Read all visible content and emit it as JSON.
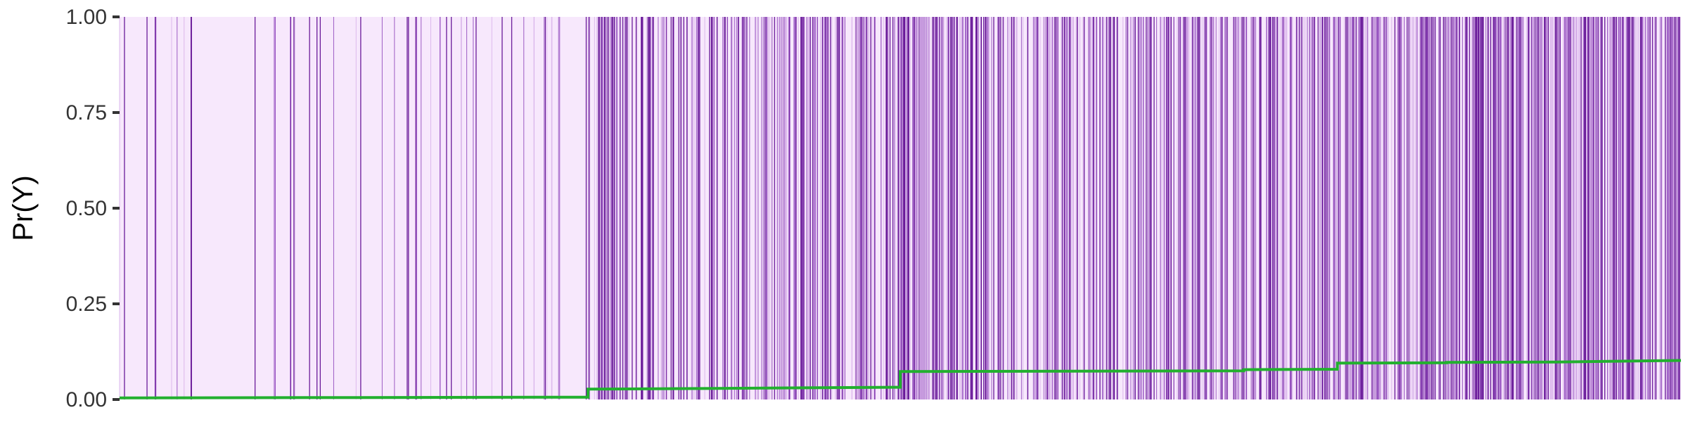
{
  "colors": {
    "panel_background": "#f7e8fc",
    "event_line_dark": "#6a1b9a",
    "event_line_mid": "#9c5bc4",
    "event_line_light": "#dcb8ec",
    "probability_line": "#22b02e",
    "tick_color": "#333333"
  },
  "chart_data": {
    "type": "line",
    "title": "",
    "xlabel": "",
    "ylabel": "Pr(Y)",
    "ylim": [
      0,
      1
    ],
    "xlim": [
      0,
      1
    ],
    "yticks": [
      {
        "value": 0.0,
        "label": "0.00"
      },
      {
        "value": 0.25,
        "label": "0.25"
      },
      {
        "value": 0.5,
        "label": "0.50"
      },
      {
        "value": 0.75,
        "label": "0.75"
      },
      {
        "value": 1.0,
        "label": "1.00"
      }
    ],
    "grid": false,
    "legend": "none",
    "probability_line": {
      "x": [
        0.0,
        0.12,
        0.3,
        0.3,
        0.5,
        0.5,
        0.72,
        0.72,
        0.78,
        0.78,
        0.85,
        0.85,
        0.92,
        1.0
      ],
      "y": [
        0.004,
        0.005,
        0.006,
        0.027,
        0.032,
        0.073,
        0.075,
        0.078,
        0.079,
        0.095,
        0.096,
        0.097,
        0.098,
        0.102
      ]
    },
    "event_segments": [
      {
        "from": 0.0,
        "to": 0.3,
        "density": "sparse"
      },
      {
        "from": 0.3,
        "to": 0.5,
        "density": "medium"
      },
      {
        "from": 0.5,
        "to": 0.77,
        "density": "dense"
      },
      {
        "from": 0.77,
        "to": 1.0,
        "density": "very dense"
      }
    ]
  }
}
